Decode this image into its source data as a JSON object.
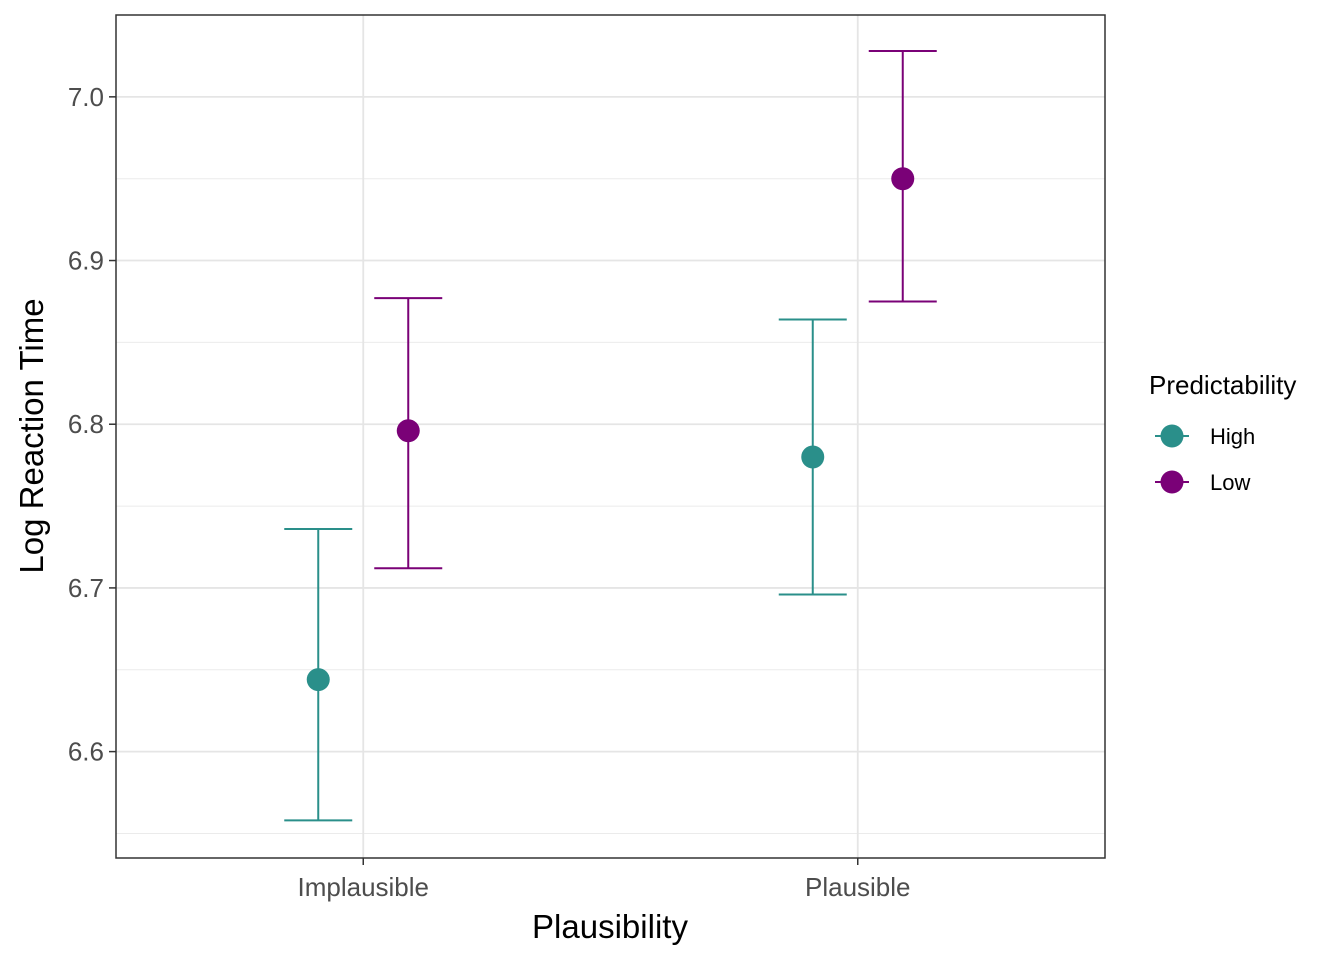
{
  "chart_data": {
    "type": "scatter",
    "xlabel": "Plausibility",
    "ylabel": "Log Reaction Time",
    "categories": [
      "Implausible",
      "Plausible"
    ],
    "ylim": [
      6.535,
      7.05
    ],
    "y_ticks": [
      "6.6",
      "6.7",
      "6.8",
      "6.9",
      "7.0"
    ],
    "grid": true,
    "legend": {
      "title": "Predictability",
      "placement": "right"
    },
    "series": [
      {
        "name": "High",
        "color": "#2a8f8a",
        "points": [
          {
            "category": "Implausible",
            "mean": 6.644,
            "lower": 6.558,
            "upper": 6.736
          },
          {
            "category": "Plausible",
            "mean": 6.78,
            "lower": 6.696,
            "upper": 6.864
          }
        ]
      },
      {
        "name": "Low",
        "color": "#7a0177",
        "points": [
          {
            "category": "Implausible",
            "mean": 6.796,
            "lower": 6.712,
            "upper": 6.877
          },
          {
            "category": "Plausible",
            "mean": 6.95,
            "lower": 6.875,
            "upper": 7.028
          }
        ]
      }
    ]
  }
}
